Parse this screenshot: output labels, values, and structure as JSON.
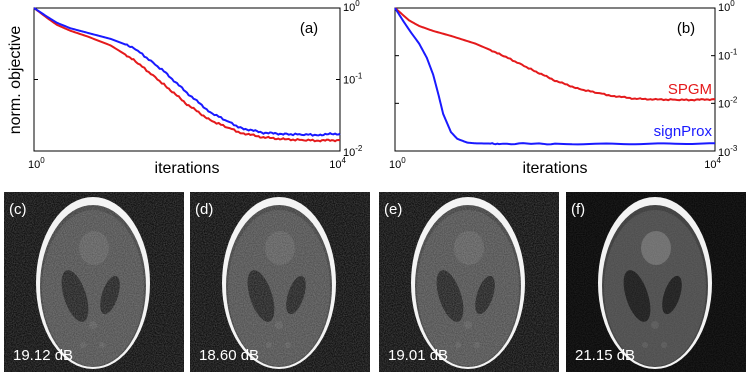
{
  "chart_data": [
    {
      "type": "line",
      "panel_tag": "(a)",
      "xlabel": "iterations",
      "ylabel": "norm. objective",
      "x_scale": "log",
      "y_scale": "log",
      "xlim": [
        1,
        10000
      ],
      "ylim": [
        0.01,
        1
      ],
      "x_tick_labels": [
        {
          "base": "10",
          "exp": "0"
        },
        {
          "base": "10",
          "exp": "4"
        }
      ],
      "y_tick_labels": [
        {
          "base": "10",
          "exp": "0"
        },
        {
          "base": "10",
          "exp": "-1"
        },
        {
          "base": "10",
          "exp": "-2"
        }
      ],
      "y_axis_side": "right",
      "series": [
        {
          "color": "#e41a1c",
          "x": [
            1,
            1.5,
            2,
            3,
            5,
            10,
            20,
            50,
            100,
            200,
            500,
            1000,
            2000,
            5000,
            10000
          ],
          "y": [
            1,
            0.72,
            0.58,
            0.48,
            0.4,
            0.3,
            0.19,
            0.085,
            0.045,
            0.027,
            0.018,
            0.0155,
            0.0145,
            0.014,
            0.0142
          ]
        },
        {
          "color": "#1a1aff",
          "x": [
            1,
            1.5,
            2,
            3,
            5,
            10,
            20,
            50,
            100,
            200,
            500,
            1000,
            2000,
            5000,
            10000
          ],
          "y": [
            1,
            0.75,
            0.62,
            0.52,
            0.45,
            0.37,
            0.28,
            0.13,
            0.065,
            0.035,
            0.021,
            0.018,
            0.0172,
            0.0168,
            0.0175
          ]
        }
      ]
    },
    {
      "type": "line",
      "panel_tag": "(b)",
      "xlabel": "iterations",
      "ylabel": "",
      "x_scale": "log",
      "y_scale": "log",
      "xlim": [
        1,
        10000
      ],
      "ylim": [
        0.001,
        1
      ],
      "x_tick_labels": [
        {
          "base": "10",
          "exp": "0"
        },
        {
          "base": "10",
          "exp": "4"
        }
      ],
      "y_tick_labels": [
        {
          "base": "10",
          "exp": "0"
        },
        {
          "base": "10",
          "exp": "-1"
        },
        {
          "base": "10",
          "exp": "-2"
        },
        {
          "base": "10",
          "exp": "-3"
        }
      ],
      "y_axis_side": "right",
      "series": [
        {
          "name": "SPGM",
          "color": "#e41a1c",
          "x": [
            1,
            1.5,
            2,
            3,
            5,
            10,
            20,
            50,
            100,
            200,
            500,
            1000,
            2000,
            5000,
            10000
          ],
          "y": [
            1,
            0.55,
            0.42,
            0.33,
            0.26,
            0.18,
            0.11,
            0.052,
            0.03,
            0.02,
            0.0145,
            0.0125,
            0.012,
            0.0118,
            0.0122
          ]
        },
        {
          "name": "signProx",
          "color": "#1a1aff",
          "x": [
            1,
            1.3,
            1.6,
            2,
            2.5,
            3,
            3.5,
            4,
            5,
            6,
            8,
            10,
            20,
            100,
            1000,
            10000
          ],
          "y": [
            1,
            0.5,
            0.3,
            0.18,
            0.09,
            0.04,
            0.015,
            0.006,
            0.0025,
            0.0018,
            0.0015,
            0.00145,
            0.00142,
            0.00142,
            0.00143,
            0.00145
          ]
        }
      ]
    }
  ],
  "images": [
    {
      "tag": "(c)",
      "snr": "19.12 dB",
      "quality": 0.25
    },
    {
      "tag": "(d)",
      "snr": "18.60 dB",
      "quality": 0.2
    },
    {
      "tag": "(e)",
      "snr": "19.01 dB",
      "quality": 0.25
    },
    {
      "tag": "(f)",
      "snr": "21.15 dB",
      "quality": 0.7
    }
  ]
}
